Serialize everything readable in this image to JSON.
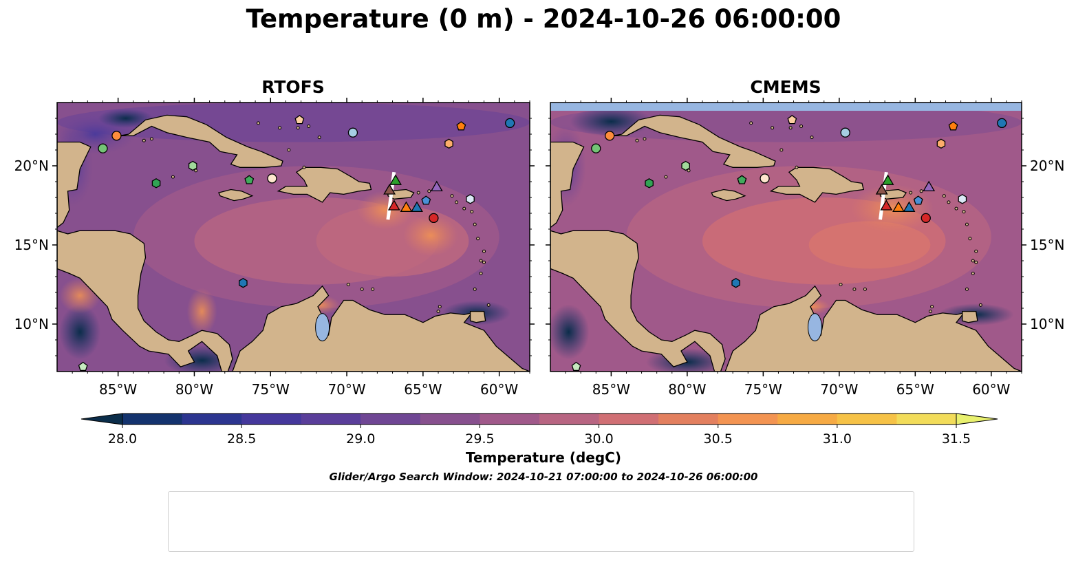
{
  "title": "Temperature (0 m) - 2024-10-26 06:00:00",
  "panels": [
    {
      "title": "RTOFS",
      "key": "rtofs"
    },
    {
      "title": "CMEMS",
      "key": "cmems"
    }
  ],
  "colorbar": {
    "label": "Temperature (degC)",
    "ticks": [
      "28.0",
      "28.5",
      "29.0",
      "29.5",
      "30.0",
      "30.5",
      "31.0",
      "31.5"
    ],
    "colors": [
      "#0b2d4a",
      "#14336e",
      "#2c3590",
      "#45389c",
      "#5a3e9a",
      "#6f4694",
      "#87508e",
      "#a0598a",
      "#b86582",
      "#d06f74",
      "#e3805f",
      "#f39452",
      "#f6aa44",
      "#f6c247",
      "#f2dc5a",
      "#e9f16f"
    ]
  },
  "search_window": "Glider/Argo Search Window: 2024-10-21 07:00:00 to 2024-10-26 06:00:00",
  "chart_data": {
    "type": "map",
    "extent": {
      "lon": [
        -89,
        -58
      ],
      "lat": [
        7,
        24
      ]
    },
    "x_ticks": [
      "85°W",
      "80°W",
      "75°W",
      "70°W",
      "65°W",
      "60°W"
    ],
    "y_ticks": [
      "20°N",
      "15°N",
      "10°N"
    ],
    "x_tick_values": [
      -85,
      -80,
      -75,
      -70,
      -65,
      -60
    ],
    "y_tick_values": [
      20,
      15,
      10
    ],
    "value_range": [
      28.0,
      31.5
    ],
    "argo_floats": [
      {
        "id": "1902314",
        "marker": "circle",
        "color": "#1f77b4",
        "lon": -59.3,
        "lat": 22.7
      },
      {
        "id": "1902522",
        "marker": "hexagon",
        "color": "#1f77b4",
        "lon": -76.8,
        "lat": 12.6
      },
      {
        "id": "3902457",
        "marker": "pentagon",
        "color": "#4a90d6",
        "lon": -64.8,
        "lat": 17.8
      },
      {
        "id": "4902534",
        "marker": "circle",
        "color": "#a6cee3",
        "lon": -69.6,
        "lat": 22.1
      },
      {
        "id": "4902609",
        "marker": "hexagon",
        "color": "#dbe9f6",
        "lon": -61.9,
        "lat": 17.9
      },
      {
        "id": "4903244",
        "marker": "pentagon",
        "color": "#ff7f0e",
        "lon": -62.5,
        "lat": 22.5
      },
      {
        "id": "4903250",
        "marker": "circle",
        "color": "#fd8d3c",
        "lon": -85.1,
        "lat": 21.9
      },
      {
        "id": "4903333",
        "marker": "hexagon",
        "color": "#fdae6b",
        "lon": -63.3,
        "lat": 21.4
      },
      {
        "id": "4903348",
        "marker": "pentagon",
        "color": "#fdd0a2",
        "lon": -73.1,
        "lat": 22.9
      },
      {
        "id": "4903558",
        "marker": "circle",
        "color": "#fee6ce",
        "lon": -74.9,
        "lat": 19.2
      },
      {
        "id": "4903559",
        "marker": "hexagon",
        "color": "#31a354",
        "lon": -82.5,
        "lat": 18.9
      },
      {
        "id": "4903561",
        "marker": "pentagon",
        "color": "#41ab5d",
        "lon": -76.4,
        "lat": 19.1
      },
      {
        "id": "4903562",
        "marker": "circle",
        "color": "#74c476",
        "lon": -86.0,
        "lat": 21.1
      },
      {
        "id": "4903563",
        "marker": "hexagon",
        "color": "#a1d99b",
        "lon": -80.1,
        "lat": 20.0
      },
      {
        "id": "5906478",
        "marker": "pentagon",
        "color": "#c7e9c0",
        "lon": -87.3,
        "lat": 7.3
      },
      {
        "id": "6903111",
        "marker": "circle",
        "color": "#d62728",
        "lon": -64.3,
        "lat": 16.7
      }
    ],
    "gliders": [
      {
        "id": "SG610-20240711T1133",
        "color": "#1f77b4",
        "lon": -65.4,
        "lat": 17.4
      },
      {
        "id": "SG630-20240713T1103",
        "color": "#ff7f0e",
        "lon": -66.1,
        "lat": 17.4
      },
      {
        "id": "SG649-20240712T1133",
        "color": "#2ca02c",
        "lon": -66.8,
        "lat": 19.1
      },
      {
        "id": "SG678-20240617T1202",
        "color": "#d62728",
        "lon": -66.9,
        "lat": 17.5
      },
      {
        "id": "ng783-20240807T0000",
        "color": "#9467bd",
        "lon": -64.1,
        "lat": 18.7
      },
      {
        "id": "uvi_01-20241004T1402",
        "color": "#8c564b",
        "lon": -67.2,
        "lat": 18.5
      }
    ]
  }
}
